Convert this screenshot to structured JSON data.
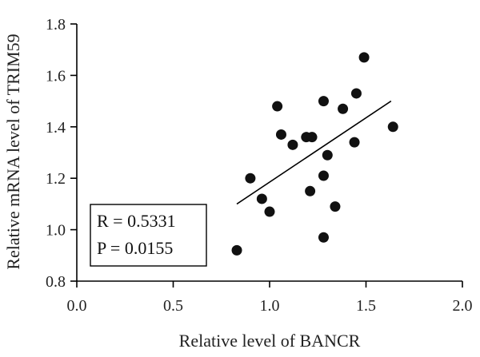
{
  "chart_data": {
    "type": "scatter",
    "xlabel": "Relative level of BANCR",
    "ylabel": "Relative mRNA level of TRIM59",
    "xlim": [
      0.0,
      2.0
    ],
    "ylim": [
      0.8,
      1.8
    ],
    "x_ticks": [
      "0.0",
      "0.5",
      "1.0",
      "1.5",
      "2.0"
    ],
    "y_ticks": [
      "0.8",
      "1.0",
      "1.2",
      "1.4",
      "1.6",
      "1.8"
    ],
    "points": [
      {
        "x": 0.83,
        "y": 0.92
      },
      {
        "x": 0.9,
        "y": 1.2
      },
      {
        "x": 0.96,
        "y": 1.12
      },
      {
        "x": 1.0,
        "y": 1.07
      },
      {
        "x": 1.04,
        "y": 1.48
      },
      {
        "x": 1.06,
        "y": 1.37
      },
      {
        "x": 1.12,
        "y": 1.33
      },
      {
        "x": 1.19,
        "y": 1.36
      },
      {
        "x": 1.21,
        "y": 1.15
      },
      {
        "x": 1.22,
        "y": 1.36
      },
      {
        "x": 1.28,
        "y": 1.5
      },
      {
        "x": 1.28,
        "y": 1.21
      },
      {
        "x": 1.28,
        "y": 0.97
      },
      {
        "x": 1.3,
        "y": 1.29
      },
      {
        "x": 1.34,
        "y": 1.09
      },
      {
        "x": 1.38,
        "y": 1.47
      },
      {
        "x": 1.44,
        "y": 1.34
      },
      {
        "x": 1.45,
        "y": 1.53
      },
      {
        "x": 1.49,
        "y": 1.67
      },
      {
        "x": 1.64,
        "y": 1.4
      }
    ],
    "fit_line": {
      "x": [
        0.83,
        1.63
      ],
      "y": [
        1.1,
        1.5
      ]
    },
    "annotations": {
      "r_text": "R = 0.5331",
      "p_text": "P = 0.0155"
    },
    "grid": false,
    "legend": false
  }
}
